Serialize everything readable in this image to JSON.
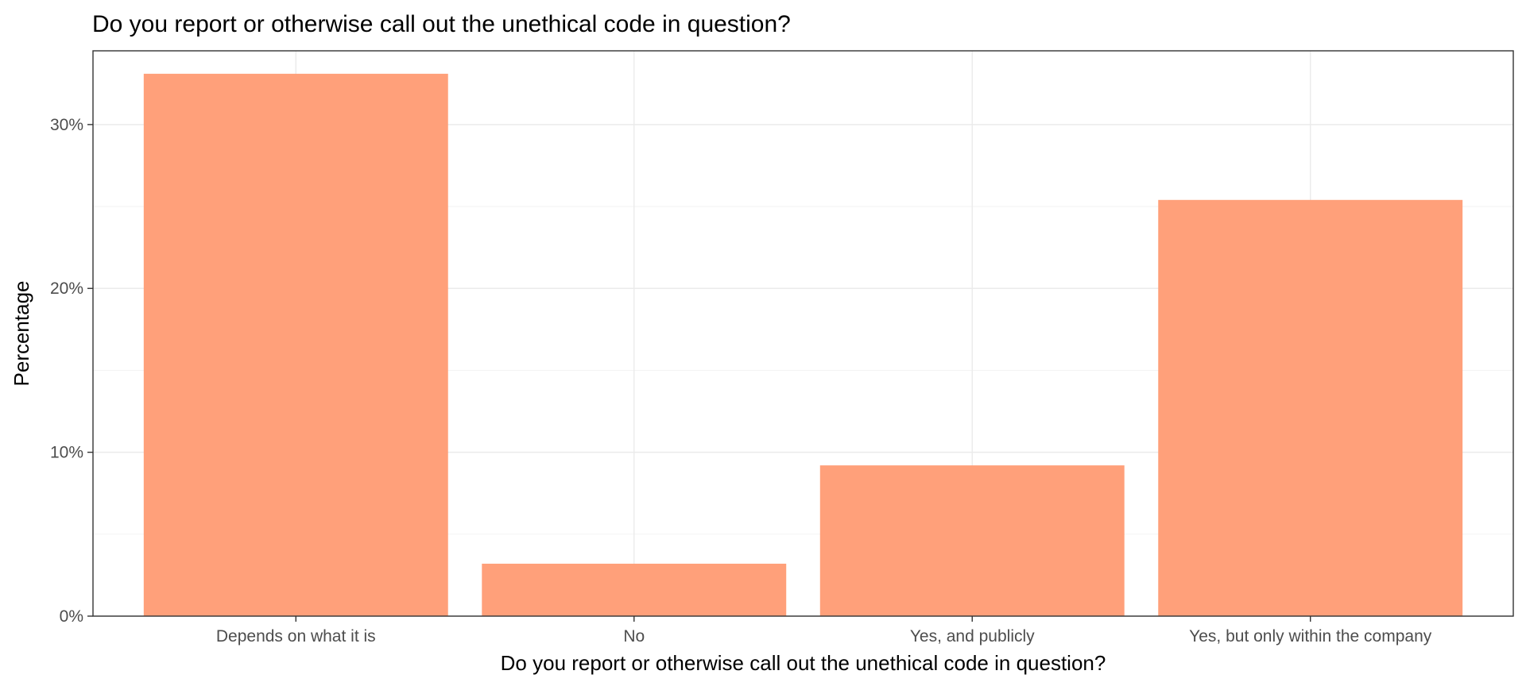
{
  "chart_data": {
    "type": "bar",
    "title": "Do you report or otherwise call out the unethical code in question?",
    "xlabel": "Do you report or otherwise call out the unethical code in question?",
    "ylabel": "Percentage",
    "categories": [
      "Depends on what it is",
      "No",
      "Yes, and publicly",
      "Yes, but only within the company"
    ],
    "values": [
      33.1,
      3.2,
      9.2,
      25.4
    ],
    "ylim": [
      0,
      34.5
    ],
    "yticks": [
      0,
      10,
      20,
      30
    ],
    "ytick_labels": [
      "0%",
      "10%",
      "20%",
      "30%"
    ],
    "bar_color": "#FFA07A",
    "grid": true,
    "legend": "none"
  }
}
